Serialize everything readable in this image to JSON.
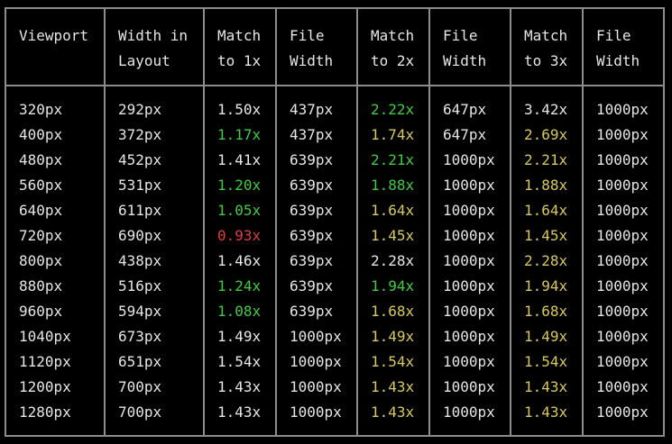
{
  "colors": {
    "green": "#3fcc3f",
    "yellow": "#d9c95a",
    "red": "#e23b3b",
    "white": "#e6e6e6",
    "border": "#8c8c8c"
  },
  "headers": [
    [
      "Viewport",
      ""
    ],
    [
      "Width in",
      "Layout"
    ],
    [
      "Match",
      "to 1x"
    ],
    [
      "File",
      "Width"
    ],
    [
      "Match",
      "to 2x"
    ],
    [
      "File",
      "Width"
    ],
    [
      "Match",
      "to 3x"
    ],
    [
      "File",
      "Width"
    ]
  ],
  "rows": [
    {
      "viewport": "320px",
      "layout": "292px",
      "m1": "1.50x",
      "c1": "white",
      "f1": "437px",
      "m2": "2.22x",
      "c2": "green",
      "f2": "647px",
      "m3": "3.42x",
      "c3": "white",
      "f3": "1000px"
    },
    {
      "viewport": "400px",
      "layout": "372px",
      "m1": "1.17x",
      "c1": "green",
      "f1": "437px",
      "m2": "1.74x",
      "c2": "yellow",
      "f2": "647px",
      "m3": "2.69x",
      "c3": "yellow",
      "f3": "1000px"
    },
    {
      "viewport": "480px",
      "layout": "452px",
      "m1": "1.41x",
      "c1": "white",
      "f1": "639px",
      "m2": "2.21x",
      "c2": "green",
      "f2": "1000px",
      "m3": "2.21x",
      "c3": "yellow",
      "f3": "1000px"
    },
    {
      "viewport": "560px",
      "layout": "531px",
      "m1": "1.20x",
      "c1": "green",
      "f1": "639px",
      "m2": "1.88x",
      "c2": "green",
      "f2": "1000px",
      "m3": "1.88x",
      "c3": "yellow",
      "f3": "1000px"
    },
    {
      "viewport": "640px",
      "layout": "611px",
      "m1": "1.05x",
      "c1": "green",
      "f1": "639px",
      "m2": "1.64x",
      "c2": "yellow",
      "f2": "1000px",
      "m3": "1.64x",
      "c3": "yellow",
      "f3": "1000px"
    },
    {
      "viewport": "720px",
      "layout": "690px",
      "m1": "0.93x",
      "c1": "red",
      "f1": "639px",
      "m2": "1.45x",
      "c2": "yellow",
      "f2": "1000px",
      "m3": "1.45x",
      "c3": "yellow",
      "f3": "1000px"
    },
    {
      "viewport": "800px",
      "layout": "438px",
      "m1": "1.46x",
      "c1": "white",
      "f1": "639px",
      "m2": "2.28x",
      "c2": "white",
      "f2": "1000px",
      "m3": "2.28x",
      "c3": "yellow",
      "f3": "1000px"
    },
    {
      "viewport": "880px",
      "layout": "516px",
      "m1": "1.24x",
      "c1": "green",
      "f1": "639px",
      "m2": "1.94x",
      "c2": "green",
      "f2": "1000px",
      "m3": "1.94x",
      "c3": "yellow",
      "f3": "1000px"
    },
    {
      "viewport": "960px",
      "layout": "594px",
      "m1": "1.08x",
      "c1": "green",
      "f1": "639px",
      "m2": "1.68x",
      "c2": "yellow",
      "f2": "1000px",
      "m3": "1.68x",
      "c3": "yellow",
      "f3": "1000px"
    },
    {
      "viewport": "1040px",
      "layout": "673px",
      "m1": "1.49x",
      "c1": "white",
      "f1": "1000px",
      "m2": "1.49x",
      "c2": "yellow",
      "f2": "1000px",
      "m3": "1.49x",
      "c3": "yellow",
      "f3": "1000px"
    },
    {
      "viewport": "1120px",
      "layout": "651px",
      "m1": "1.54x",
      "c1": "white",
      "f1": "1000px",
      "m2": "1.54x",
      "c2": "yellow",
      "f2": "1000px",
      "m3": "1.54x",
      "c3": "yellow",
      "f3": "1000px"
    },
    {
      "viewport": "1200px",
      "layout": "700px",
      "m1": "1.43x",
      "c1": "white",
      "f1": "1000px",
      "m2": "1.43x",
      "c2": "yellow",
      "f2": "1000px",
      "m3": "1.43x",
      "c3": "yellow",
      "f3": "1000px"
    },
    {
      "viewport": "1280px",
      "layout": "700px",
      "m1": "1.43x",
      "c1": "white",
      "f1": "1000px",
      "m2": "1.43x",
      "c2": "yellow",
      "f2": "1000px",
      "m3": "1.43x",
      "c3": "yellow",
      "f3": "1000px"
    }
  ]
}
